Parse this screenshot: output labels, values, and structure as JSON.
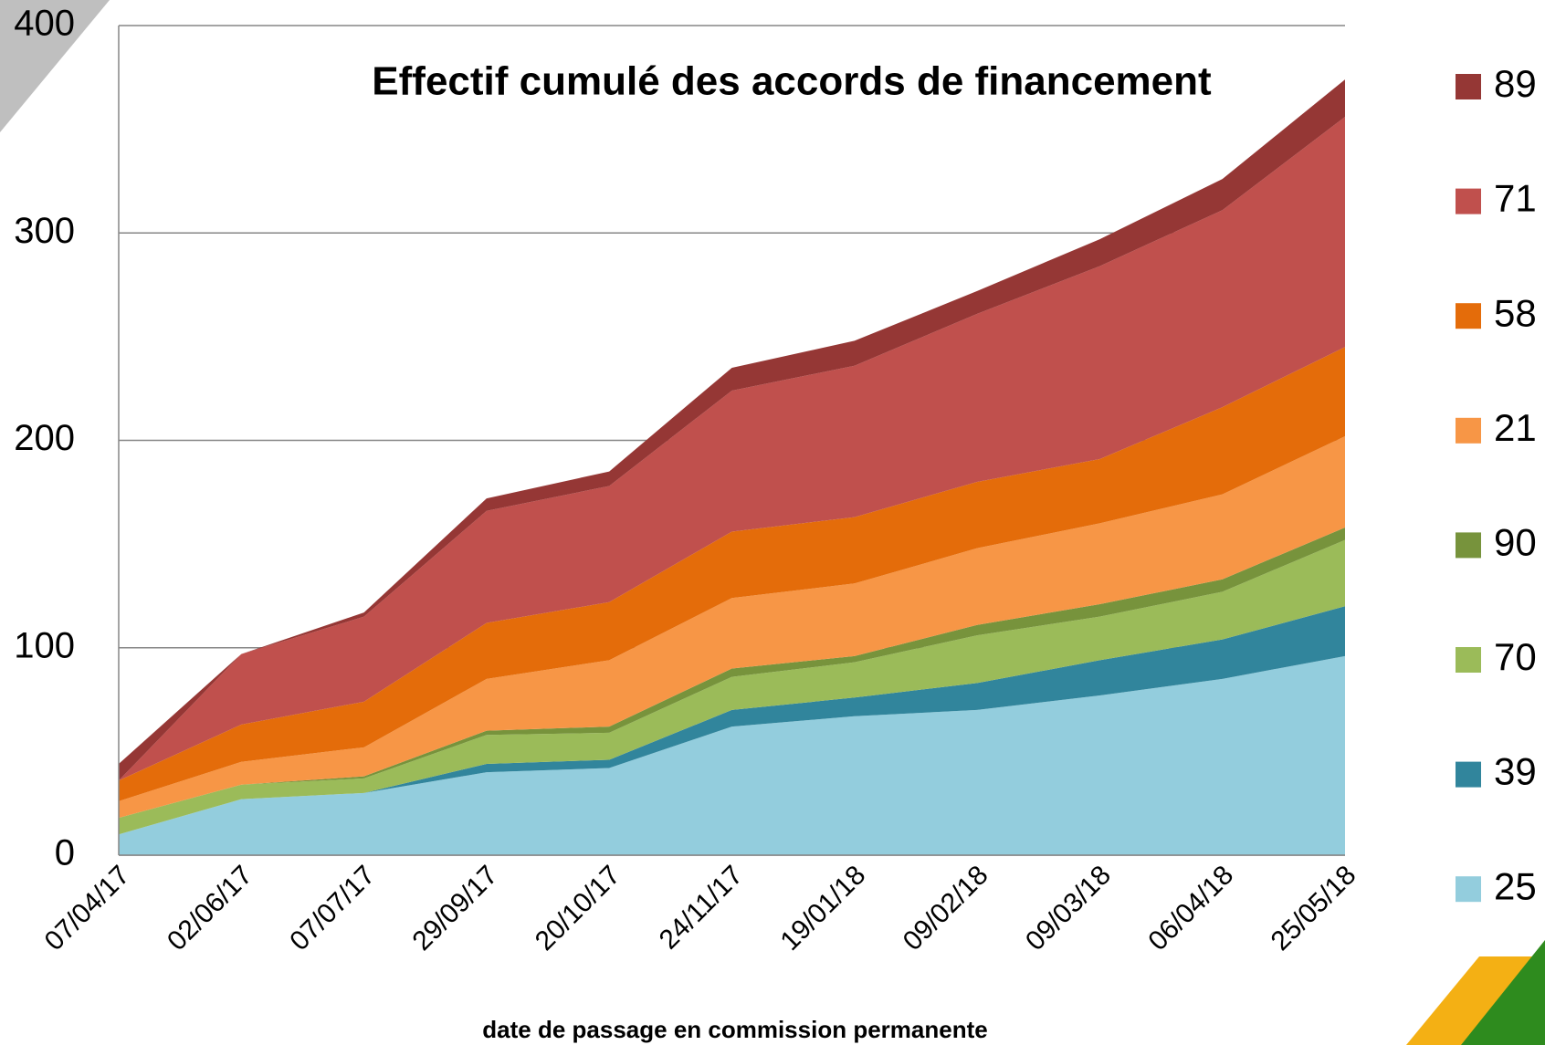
{
  "chart_data": {
    "type": "stacked_area",
    "title": "Effectif cumulé des accords de financement",
    "x_label": "date de passage en commission permanente",
    "categories": [
      "07/04/17",
      "02/06/17",
      "07/07/17",
      "29/09/17",
      "20/10/17",
      "24/11/17",
      "19/01/18",
      "09/02/18",
      "09/03/18",
      "06/04/18",
      "25/05/18"
    ],
    "series": [
      {
        "name": "25",
        "color": "#93cddd",
        "values": [
          10,
          27,
          30,
          40,
          42,
          62,
          67,
          70,
          77,
          85,
          96
        ]
      },
      {
        "name": "39",
        "color": "#31859c",
        "values": [
          0,
          0,
          0,
          4,
          4,
          8,
          9,
          13,
          17,
          19,
          24
        ]
      },
      {
        "name": "70",
        "color": "#9bbb59",
        "values": [
          8,
          7,
          7,
          14,
          13,
          16,
          17,
          23,
          21,
          23,
          32
        ]
      },
      {
        "name": "90",
        "color": "#77933c",
        "values": [
          0,
          0,
          1,
          2,
          3,
          4,
          3,
          5,
          6,
          6,
          6
        ]
      },
      {
        "name": "21",
        "color": "#f79646",
        "values": [
          8,
          11,
          14,
          25,
          32,
          34,
          35,
          37,
          39,
          41,
          44
        ]
      },
      {
        "name": "58",
        "color": "#e46c0a",
        "values": [
          10,
          18,
          22,
          27,
          28,
          32,
          32,
          32,
          31,
          42,
          43
        ]
      },
      {
        "name": "71",
        "color": "#c0504d",
        "values": [
          0,
          34,
          41,
          54,
          56,
          68,
          73,
          81,
          93,
          95,
          111
        ]
      },
      {
        "name": "89",
        "color": "#953735",
        "values": [
          8,
          0,
          2,
          6,
          7,
          11,
          12,
          11,
          13,
          15,
          18
        ]
      }
    ],
    "ylim": [
      0,
      400
    ],
    "yticks": [
      0,
      100,
      200,
      300,
      400
    ],
    "grid": true,
    "legend": "right"
  }
}
